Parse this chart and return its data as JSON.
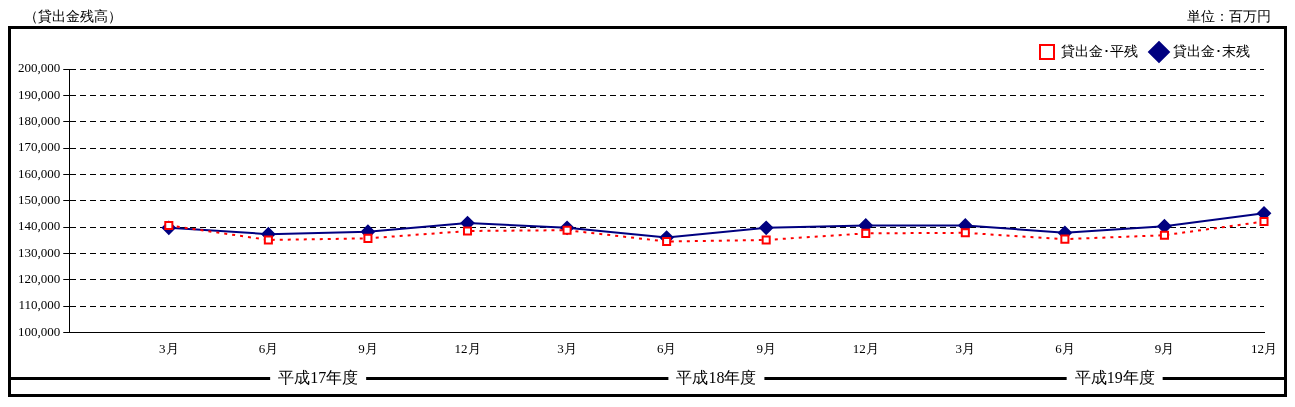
{
  "chart_data": {
    "type": "line",
    "categories": [
      "3月",
      "6月",
      "9月",
      "12月",
      "3月",
      "6月",
      "9月",
      "12月",
      "3月",
      "6月",
      "9月",
      "12月"
    ],
    "series": [
      {
        "name": "貸出金･末残",
        "color": "#000080",
        "marker": "diamond",
        "line_style": "solid",
        "values": [
          139700,
          137300,
          138200,
          141500,
          139700,
          136000,
          139700,
          140600,
          140600,
          137800,
          140300,
          145200
        ]
      },
      {
        "name": "貸出金･平残",
        "color": "#ff0000",
        "marker": "square",
        "line_style": "dotted",
        "values": [
          140600,
          135100,
          135700,
          138500,
          138800,
          134500,
          135100,
          137600,
          137800,
          135400,
          136900,
          142100
        ]
      }
    ],
    "ylim": [
      100000,
      200000
    ],
    "yticks": [
      {
        "value": 100000,
        "label": "100,000"
      },
      {
        "value": 110000,
        "label": "110,000"
      },
      {
        "value": 120000,
        "label": "120,000"
      },
      {
        "value": 130000,
        "label": "130,000"
      },
      {
        "value": 140000,
        "label": "140,000"
      },
      {
        "value": 150000,
        "label": "150,000"
      },
      {
        "value": 160000,
        "label": "160,000"
      },
      {
        "value": 170000,
        "label": "170,000"
      },
      {
        "value": 180000,
        "label": "180,000"
      },
      {
        "value": 190000,
        "label": "190,000"
      },
      {
        "value": 200000,
        "label": "200,000"
      }
    ],
    "grid": "y",
    "legend": "top right",
    "annotations": [
      "平成17年度",
      "平成18年度",
      "平成19年度",
      "（貸出金残高）",
      "単位：百万円"
    ]
  }
}
